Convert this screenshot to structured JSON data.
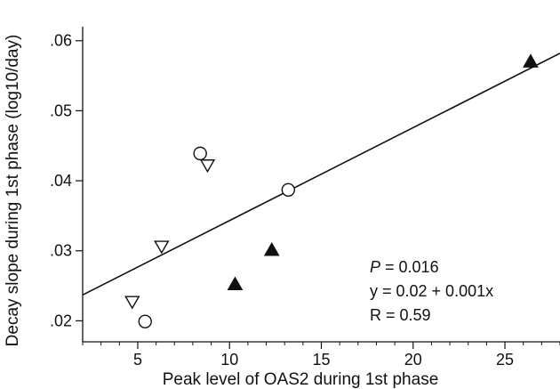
{
  "chart_data": {
    "type": "scatter",
    "title": "",
    "xlabel": "Peak level of OAS2 during 1st phase",
    "ylabel": "Decay slope during 1st phase (log10/day)",
    "xlim": [
      2,
      28
    ],
    "ylim": [
      0.017,
      0.062
    ],
    "x_ticks": [
      5,
      10,
      15,
      20,
      25
    ],
    "x_tick_labels": [
      "5",
      "10",
      "15",
      "20",
      "25"
    ],
    "y_ticks": [
      0.02,
      0.03,
      0.04,
      0.05,
      0.06
    ],
    "y_tick_labels": [
      ".02",
      ".03",
      ".04",
      ".05",
      ".06"
    ],
    "grid": false,
    "series": [
      {
        "marker": "circle-open",
        "points": [
          [
            5.4,
            0.0199
          ],
          [
            8.4,
            0.0439
          ],
          [
            13.2,
            0.0387
          ]
        ]
      },
      {
        "marker": "triangle-down-open",
        "points": [
          [
            4.7,
            0.0227
          ],
          [
            6.3,
            0.0306
          ],
          [
            8.8,
            0.0422
          ]
        ]
      },
      {
        "marker": "triangle-up-filled",
        "points": [
          [
            10.3,
            0.0252
          ],
          [
            12.3,
            0.0301
          ],
          [
            26.4,
            0.057
          ]
        ]
      }
    ],
    "regression_line": {
      "x": [
        2,
        28
      ],
      "y": [
        0.0237,
        0.0582
      ]
    },
    "annotations": {
      "p_label": "P",
      "p_value": " = 0.016",
      "equation": "y = 0.02 + 0.001x",
      "r_value": "R = 0.59"
    }
  }
}
